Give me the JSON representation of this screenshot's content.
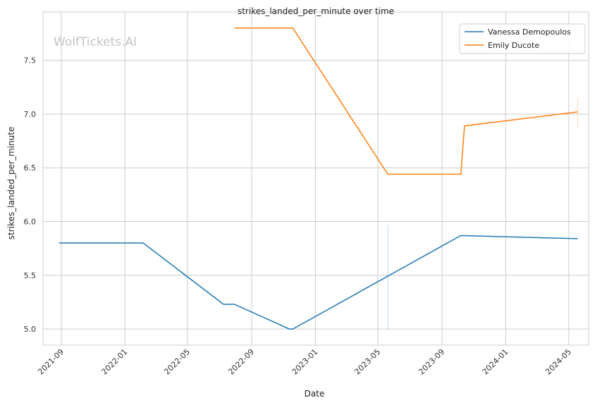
{
  "chart_data": {
    "type": "line",
    "title": "strikes_landed_per_minute over time",
    "xlabel": "Date",
    "ylabel": "strikes_landed_per_minute",
    "watermark": "WolfTickets.AI",
    "ylim": [
      4.85,
      7.95
    ],
    "xlim": [
      "2021-07-28",
      "2024-06-08"
    ],
    "yticks": [
      "5.0",
      "5.5",
      "6.0",
      "6.5",
      "7.0",
      "7.5"
    ],
    "xticks": [
      "2021-09",
      "2022-01",
      "2022-05",
      "2022-09",
      "2023-01",
      "2023-05",
      "2023-09",
      "2024-01",
      "2024-05"
    ],
    "grid": true,
    "legend_position": "top-right",
    "series": [
      {
        "name": "Vanessa Demopoulos",
        "color": "#1f77b4",
        "points": [
          {
            "x": "2021-08-28",
            "y": 5.8
          },
          {
            "x": "2022-02-05",
            "y": 5.8
          },
          {
            "x": "2022-07-09",
            "y": 5.23
          },
          {
            "x": "2022-07-30",
            "y": 5.23
          },
          {
            "x": "2022-11-12",
            "y": 5.0
          },
          {
            "x": "2022-11-19",
            "y": 5.0
          },
          {
            "x": "2023-10-07",
            "y": 5.87
          },
          {
            "x": "2024-05-18",
            "y": 5.84
          }
        ],
        "band": {
          "x": "2023-05-20",
          "low": 4.99,
          "high": 5.97
        }
      },
      {
        "name": "Emily Ducote",
        "color": "#ff7f0e",
        "points": [
          {
            "x": "2022-07-30",
            "y": 7.8
          },
          {
            "x": "2022-11-19",
            "y": 7.8
          },
          {
            "x": "2023-05-20",
            "y": 6.44
          },
          {
            "x": "2023-10-07",
            "y": 6.44
          },
          {
            "x": "2023-10-14",
            "y": 6.89
          },
          {
            "x": "2024-05-18",
            "y": 7.02
          }
        ],
        "band": {
          "x": "2024-05-18",
          "low": 6.88,
          "high": 7.15
        }
      }
    ]
  }
}
